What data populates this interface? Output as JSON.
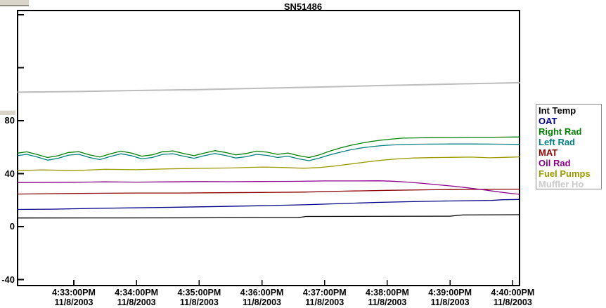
{
  "title": "SN51486",
  "chart_data": {
    "type": "line",
    "title": "SN51486",
    "grid": false,
    "legend_position": "right-outside",
    "x_axis": {
      "unit": "time of day, seconds after 4:32:00PM on 11/8/2003",
      "xlim": [
        6.2,
        486.5
      ],
      "ticks": [
        {
          "t": 60,
          "time": "4:33:00PM",
          "date": "11/8/2003"
        },
        {
          "t": 120,
          "time": "4:34:00PM",
          "date": "11/8/2003"
        },
        {
          "t": 180,
          "time": "4:35:00PM",
          "date": "11/8/2003"
        },
        {
          "t": 240,
          "time": "4:36:00PM",
          "date": "11/8/2003"
        },
        {
          "t": 300,
          "time": "4:37:00PM",
          "date": "11/8/2003"
        },
        {
          "t": 360,
          "time": "4:38:00PM",
          "date": "11/8/2003"
        },
        {
          "t": 420,
          "time": "4:39:00PM",
          "date": "11/8/2003"
        },
        {
          "t": 480,
          "time": "4:40:00PM",
          "date": "11/8/2003"
        }
      ]
    },
    "y_axis": {
      "ylim": [
        -44.5,
        163.2
      ],
      "ticks": [
        {
          "value": 160,
          "label": ""
        },
        {
          "value": 120,
          "label": ""
        },
        {
          "value": 80,
          "label": "80"
        },
        {
          "value": 40,
          "label": "40"
        },
        {
          "value": 0,
          "label": "0"
        },
        {
          "value": -40,
          "label": "-40"
        }
      ]
    },
    "series": [
      {
        "name": "Int Temp",
        "color": "#000000",
        "width": 1.3,
        "points": [
          [
            6,
            6.5
          ],
          [
            100,
            6.6
          ],
          [
            200,
            6.7
          ],
          [
            275,
            6.8
          ],
          [
            282,
            7.7
          ],
          [
            420,
            7.9
          ],
          [
            432,
            8.8
          ],
          [
            487,
            9.0
          ]
        ]
      },
      {
        "name": "OAT",
        "color": "#000085",
        "width": 1.3,
        "points": [
          [
            6,
            13.0
          ],
          [
            40,
            13.2
          ],
          [
            80,
            13.8
          ],
          [
            120,
            14.2
          ],
          [
            160,
            14.7
          ],
          [
            200,
            15.2
          ],
          [
            240,
            15.8
          ],
          [
            280,
            16.5
          ],
          [
            320,
            17.5
          ],
          [
            350,
            18.3
          ],
          [
            380,
            18.8
          ],
          [
            410,
            19.3
          ],
          [
            440,
            19.6
          ],
          [
            460,
            19.8
          ],
          [
            470,
            20.3
          ],
          [
            487,
            20.5
          ]
        ]
      },
      {
        "name": "Right Rad",
        "color": "#008000",
        "width": 1.3,
        "points": [
          [
            6,
            55.5
          ],
          [
            15,
            56.5
          ],
          [
            25,
            54.5
          ],
          [
            35,
            52.2
          ],
          [
            45,
            53.6
          ],
          [
            55,
            56.0
          ],
          [
            65,
            56.6
          ],
          [
            75,
            54.2
          ],
          [
            85,
            52.6
          ],
          [
            95,
            55.0
          ],
          [
            105,
            57.0
          ],
          [
            115,
            55.6
          ],
          [
            125,
            53.2
          ],
          [
            135,
            54.2
          ],
          [
            145,
            56.6
          ],
          [
            155,
            57.2
          ],
          [
            165,
            55.2
          ],
          [
            175,
            53.6
          ],
          [
            185,
            55.6
          ],
          [
            195,
            57.4
          ],
          [
            205,
            56.0
          ],
          [
            215,
            54.2
          ],
          [
            225,
            55.2
          ],
          [
            235,
            57.0
          ],
          [
            245,
            56.2
          ],
          [
            255,
            54.6
          ],
          [
            265,
            55.6
          ],
          [
            275,
            53.6
          ],
          [
            285,
            52.2
          ],
          [
            295,
            54.2
          ],
          [
            305,
            57.0
          ],
          [
            315,
            59.4
          ],
          [
            325,
            61.4
          ],
          [
            335,
            63.0
          ],
          [
            345,
            64.4
          ],
          [
            355,
            65.4
          ],
          [
            365,
            66.2
          ],
          [
            375,
            66.8
          ],
          [
            385,
            67.0
          ],
          [
            400,
            67.2
          ],
          [
            420,
            67.3
          ],
          [
            440,
            67.5
          ],
          [
            460,
            67.5
          ],
          [
            487,
            67.7
          ]
        ]
      },
      {
        "name": "Left Rad",
        "color": "#008080",
        "width": 1.3,
        "points": [
          [
            6,
            53.6
          ],
          [
            15,
            54.6
          ],
          [
            25,
            52.6
          ],
          [
            35,
            50.2
          ],
          [
            45,
            51.6
          ],
          [
            55,
            54.0
          ],
          [
            65,
            54.6
          ],
          [
            75,
            52.2
          ],
          [
            85,
            50.6
          ],
          [
            95,
            53.0
          ],
          [
            105,
            55.0
          ],
          [
            115,
            53.6
          ],
          [
            125,
            51.2
          ],
          [
            135,
            52.2
          ],
          [
            145,
            54.6
          ],
          [
            155,
            55.0
          ],
          [
            165,
            53.2
          ],
          [
            175,
            51.6
          ],
          [
            185,
            53.6
          ],
          [
            195,
            55.2
          ],
          [
            205,
            53.8
          ],
          [
            215,
            51.8
          ],
          [
            225,
            52.8
          ],
          [
            235,
            54.6
          ],
          [
            245,
            53.8
          ],
          [
            255,
            52.2
          ],
          [
            265,
            53.2
          ],
          [
            275,
            51.2
          ],
          [
            285,
            49.8
          ],
          [
            295,
            51.8
          ],
          [
            305,
            54.2
          ],
          [
            315,
            56.2
          ],
          [
            325,
            58.0
          ],
          [
            335,
            59.4
          ],
          [
            345,
            60.4
          ],
          [
            355,
            61.2
          ],
          [
            365,
            61.7
          ],
          [
            375,
            62.0
          ],
          [
            385,
            62.2
          ],
          [
            400,
            62.3
          ],
          [
            420,
            62.4
          ],
          [
            440,
            62.4
          ],
          [
            460,
            62.3
          ],
          [
            487,
            62.1
          ]
        ]
      },
      {
        "name": "MAT",
        "color": "#8b0000",
        "width": 1.3,
        "points": [
          [
            6,
            24.6
          ],
          [
            40,
            24.9
          ],
          [
            80,
            25.2
          ],
          [
            120,
            25.4
          ],
          [
            160,
            25.4
          ],
          [
            200,
            25.6
          ],
          [
            240,
            25.8
          ],
          [
            280,
            26.1
          ],
          [
            320,
            26.8
          ],
          [
            360,
            27.4
          ],
          [
            400,
            27.8
          ],
          [
            440,
            28.1
          ],
          [
            487,
            28.3
          ]
        ]
      },
      {
        "name": "Oil Rad",
        "color": "#8d008d",
        "width": 1.3,
        "points": [
          [
            6,
            33.3
          ],
          [
            60,
            33.5
          ],
          [
            90,
            33.8
          ],
          [
            120,
            33.6
          ],
          [
            150,
            33.8
          ],
          [
            180,
            34.0
          ],
          [
            210,
            33.9
          ],
          [
            240,
            34.1
          ],
          [
            270,
            34.2
          ],
          [
            300,
            34.5
          ],
          [
            330,
            34.5
          ],
          [
            352,
            34.6
          ],
          [
            365,
            34.3
          ],
          [
            380,
            33.6
          ],
          [
            395,
            32.6
          ],
          [
            410,
            31.5
          ],
          [
            425,
            30.4
          ],
          [
            440,
            29.0
          ],
          [
            455,
            27.5
          ],
          [
            465,
            26.4
          ],
          [
            475,
            25.4
          ],
          [
            487,
            24.4
          ]
        ]
      },
      {
        "name": "Fuel Pumps",
        "color": "#9c9a00",
        "width": 1.3,
        "points": [
          [
            6,
            42.3
          ],
          [
            30,
            42.8
          ],
          [
            60,
            42.3
          ],
          [
            90,
            43.3
          ],
          [
            120,
            43.0
          ],
          [
            150,
            43.6
          ],
          [
            180,
            44.0
          ],
          [
            210,
            44.3
          ],
          [
            240,
            45.0
          ],
          [
            262,
            44.6
          ],
          [
            280,
            44.1
          ],
          [
            295,
            44.6
          ],
          [
            310,
            45.8
          ],
          [
            325,
            47.3
          ],
          [
            340,
            48.8
          ],
          [
            355,
            50.2
          ],
          [
            370,
            51.2
          ],
          [
            385,
            51.8
          ],
          [
            400,
            52.1
          ],
          [
            420,
            52.3
          ],
          [
            440,
            52.5
          ],
          [
            458,
            52.0
          ],
          [
            472,
            52.3
          ],
          [
            487,
            52.7
          ]
        ]
      },
      {
        "name": "Muffler Ho",
        "color": "#bcbcbc",
        "width": 2,
        "points": [
          [
            6,
            101.5
          ],
          [
            60,
            102.0
          ],
          [
            120,
            102.8
          ],
          [
            180,
            103.5
          ],
          [
            240,
            104.5
          ],
          [
            300,
            105.5
          ],
          [
            360,
            106.6
          ],
          [
            420,
            107.6
          ],
          [
            487,
            108.7
          ]
        ]
      }
    ],
    "legend": {
      "entries": [
        {
          "label": "Int Temp",
          "color": "#000000"
        },
        {
          "label": "OAT",
          "color": "#000085"
        },
        {
          "label": "Right Rad",
          "color": "#008000"
        },
        {
          "label": "Left Rad",
          "color": "#008080"
        },
        {
          "label": "MAT",
          "color": "#8b0000"
        },
        {
          "label": "Oil Rad",
          "color": "#8d008d"
        },
        {
          "label": "Fuel Pumps",
          "color": "#9c9a00"
        },
        {
          "label": "Muffler Ho",
          "color": "#c9c9c9"
        }
      ]
    }
  }
}
